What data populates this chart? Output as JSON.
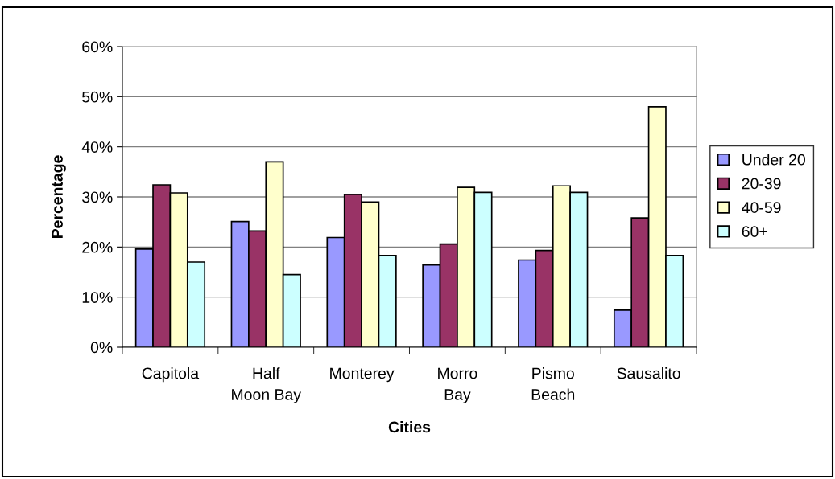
{
  "chart_data": {
    "type": "bar",
    "xlabel": "Cities",
    "ylabel": "Percentage",
    "categories": [
      "Capitola",
      "Half\nMoon Bay",
      "Monterey",
      "Morro\nBay",
      "Pismo\nBeach",
      "Sausalito"
    ],
    "series": [
      {
        "name": "Under 20",
        "color": "#9999ff",
        "values": [
          19.6,
          25.1,
          21.9,
          16.4,
          17.4,
          7.4
        ]
      },
      {
        "name": "20-39",
        "color": "#993366",
        "values": [
          32.4,
          23.2,
          30.5,
          20.6,
          19.3,
          25.8
        ]
      },
      {
        "name": "40-59",
        "color": "#ffffcc",
        "values": [
          30.8,
          37.0,
          29.0,
          31.9,
          32.2,
          48.0
        ]
      },
      {
        "name": "60+",
        "color": "#ccffff",
        "values": [
          17.0,
          14.5,
          18.3,
          30.9,
          30.9,
          18.3
        ]
      }
    ],
    "ylim": [
      0,
      60
    ],
    "yticks": [
      {
        "value": 0,
        "label": "0%"
      },
      {
        "value": 10,
        "label": "10%"
      },
      {
        "value": 20,
        "label": "20%"
      },
      {
        "value": 30,
        "label": "30%"
      },
      {
        "value": 40,
        "label": "40%"
      },
      {
        "value": 50,
        "label": "50%"
      },
      {
        "value": 60,
        "label": "60%"
      }
    ],
    "grid": "y",
    "legend": "right"
  }
}
